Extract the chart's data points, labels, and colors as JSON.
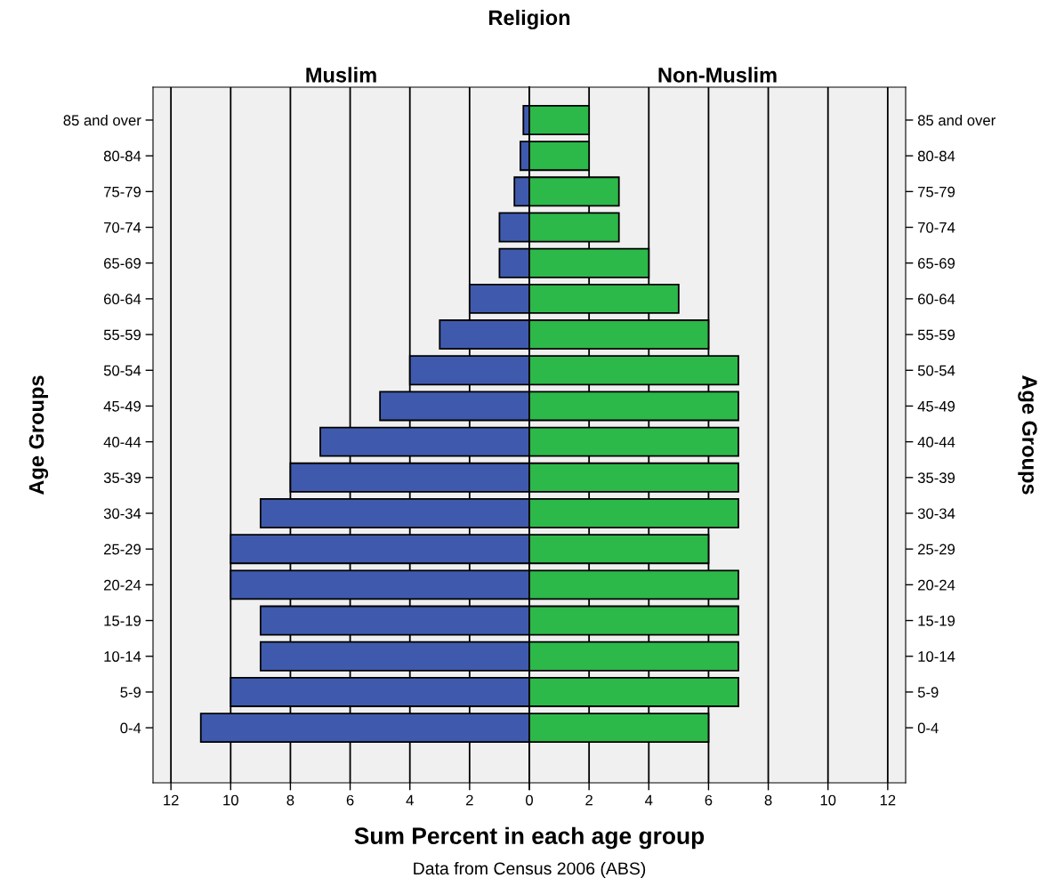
{
  "chart_data": [
    {
      "type": "bar",
      "orientation": "horizontal",
      "title": "Religion",
      "subtitle": "Muslim",
      "xlabel": "Sum Percent in each age group",
      "ylabel": "Age Groups",
      "annotations": [
        "Data from Census 2006 (ABS)"
      ],
      "categories": [
        "85 and over",
        "80-84",
        "75-79",
        "70-74",
        "65-69",
        "60-64",
        "55-59",
        "50-54",
        "45-49",
        "40-44",
        "35-39",
        "30-34",
        "25-29",
        "20-24",
        "15-19",
        "10-14",
        "5-9",
        "0-4"
      ],
      "values": [
        0.2,
        0.3,
        0.5,
        1,
        1,
        2,
        3,
        4,
        5,
        7,
        8,
        9,
        10,
        10,
        9,
        9,
        10,
        11
      ],
      "color": "#3f5aad",
      "xlim": [
        12.6,
        0
      ],
      "xticks": [
        12,
        10,
        8,
        6,
        4,
        2,
        {
          "value": 0,
          "label": null
        }
      ],
      "grid": "x"
    },
    {
      "type": "bar",
      "orientation": "horizontal",
      "subtitle": "Non-Muslim",
      "ylabel": "Age Groups",
      "categories": [
        "85 and over",
        "80-84",
        "75-79",
        "70-74",
        "65-69",
        "60-64",
        "55-59",
        "50-54",
        "45-49",
        "40-44",
        "35-39",
        "30-34",
        "25-29",
        "20-24",
        "15-19",
        "10-14",
        "5-9",
        "0-4"
      ],
      "values": [
        2,
        2,
        3,
        3,
        4,
        5,
        6,
        7,
        7,
        7,
        7,
        7,
        6,
        7,
        7,
        7,
        7,
        6
      ],
      "color": "#2db84a",
      "xlim": [
        0,
        12.6
      ],
      "xticks": [
        0,
        2,
        4,
        6,
        8,
        10,
        12
      ],
      "grid": "x"
    }
  ]
}
